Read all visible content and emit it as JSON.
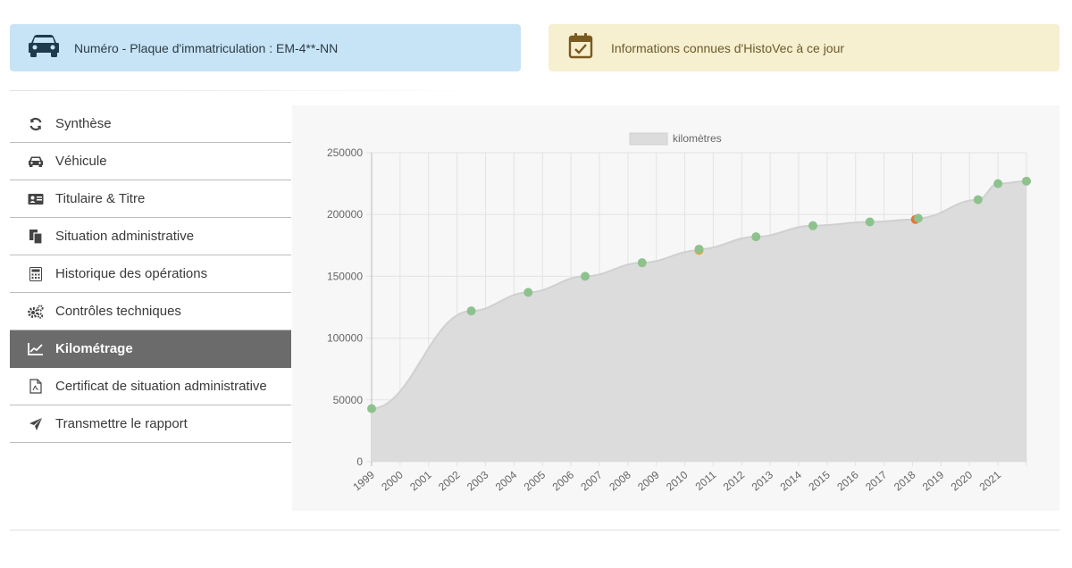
{
  "header": {
    "plate_text": "Numéro - Plaque d'immatriculation : EM-4**-NN",
    "plate_icon": "car-icon",
    "info_text": "Informations connues d'HistoVec à ce jour",
    "info_icon": "calendar-check-icon",
    "plate_bg": "#c7e4f7",
    "info_bg": "#f6efd0"
  },
  "sidebar": {
    "active_index": 6,
    "items": [
      {
        "label": "Synthèse",
        "icon": "sync-icon"
      },
      {
        "label": "Véhicule",
        "icon": "car-icon"
      },
      {
        "label": "Titulaire & Titre",
        "icon": "id-card-icon"
      },
      {
        "label": "Situation administrative",
        "icon": "copy-icon"
      },
      {
        "label": "Historique des opérations",
        "icon": "calculator-icon"
      },
      {
        "label": "Contrôles techniques",
        "icon": "cogs-icon"
      },
      {
        "label": "Kilométrage",
        "icon": "chart-line-icon"
      },
      {
        "label": "Certificat de situation administrative",
        "icon": "pdf-file-icon"
      },
      {
        "label": "Transmettre le rapport",
        "icon": "paper-plane-icon"
      }
    ]
  },
  "chart_data": {
    "type": "line",
    "legend": "kilomètres",
    "legend_position": "top-center",
    "grid": true,
    "categories": [
      "1999",
      "2000",
      "2001",
      "2002",
      "2003",
      "2004",
      "2005",
      "2006",
      "2007",
      "2008",
      "2009",
      "2010",
      "2011",
      "2012",
      "2013",
      "2014",
      "2015",
      "2016",
      "2017",
      "2018",
      "2019",
      "2020",
      "2021"
    ],
    "ylim": [
      0,
      250000
    ],
    "yticks": [
      0,
      50000,
      100000,
      150000,
      200000,
      250000
    ],
    "series": [
      {
        "name": "kilomètres",
        "fill": "#dcdcdc",
        "line": "#d0d0d0",
        "points": [
          {
            "x": 1999.0,
            "y": 43000,
            "color": "#8dc28d"
          },
          {
            "x": 2002.5,
            "y": 122000,
            "color": "#8dc28d"
          },
          {
            "x": 2004.5,
            "y": 137000,
            "color": "#8dc28d"
          },
          {
            "x": 2006.5,
            "y": 150000,
            "color": "#8dc28d"
          },
          {
            "x": 2008.5,
            "y": 161000,
            "color": "#8dc28d"
          },
          {
            "x": 2010.5,
            "y": 171000,
            "color": "#f0a030"
          },
          {
            "x": 2010.5,
            "y": 172000,
            "color": "#8dc28d"
          },
          {
            "x": 2012.5,
            "y": 182000,
            "color": "#8dc28d"
          },
          {
            "x": 2014.5,
            "y": 191000,
            "color": "#8dc28d"
          },
          {
            "x": 2016.5,
            "y": 194000,
            "color": "#8dc28d"
          },
          {
            "x": 2018.1,
            "y": 196000,
            "color": "#f07030"
          },
          {
            "x": 2018.2,
            "y": 197000,
            "color": "#8dc28d"
          },
          {
            "x": 2020.3,
            "y": 212000,
            "color": "#8dc28d"
          },
          {
            "x": 2021.0,
            "y": 225000,
            "color": "#8dc28d"
          },
          {
            "x": 2022.0,
            "y": 227000,
            "color": "#8dc28d"
          }
        ]
      }
    ]
  }
}
